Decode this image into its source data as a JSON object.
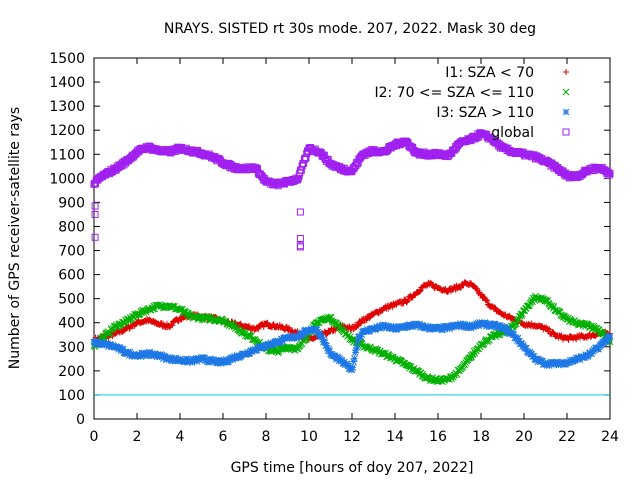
{
  "chart_data": {
    "type": "scatter",
    "title": "NRAYS. SISTED rt 30s mode. 207, 2022. Mask 30 deg",
    "xlabel": "GPS time [hours of doy 207, 2022]",
    "ylabel": "Number of GPS receiver-satellite rays",
    "xlim": [
      0,
      24
    ],
    "ylim": [
      0,
      1500
    ],
    "xticks": [
      0,
      2,
      4,
      6,
      8,
      10,
      12,
      14,
      16,
      18,
      20,
      22,
      24
    ],
    "yticks": [
      0,
      100,
      200,
      300,
      400,
      500,
      600,
      700,
      800,
      900,
      1000,
      1100,
      1200,
      1300,
      1400,
      1500
    ],
    "legend_position": "top-right",
    "reference_line": {
      "y": 100,
      "color": "#00cccc"
    },
    "series": [
      {
        "name": "I1: SZA < 70",
        "marker": "+",
        "color": "#e00000",
        "x": [
          0,
          0.5,
          1,
          1.5,
          2,
          2.5,
          3,
          3.5,
          4,
          4.5,
          5,
          5.5,
          6,
          6.5,
          7,
          7.5,
          8,
          8.5,
          9,
          9.5,
          10,
          10.5,
          11,
          11.5,
          12,
          12.5,
          13,
          13.5,
          14,
          14.5,
          15,
          15.3,
          15.6,
          16,
          16.5,
          17,
          17.3,
          17.6,
          18,
          18.5,
          19,
          19.5,
          20,
          20.5,
          21,
          21.5,
          22,
          22.5,
          23,
          23.5,
          24
        ],
        "values": [
          330,
          340,
          355,
          375,
          400,
          410,
          395,
          385,
          420,
          430,
          425,
          420,
          405,
          395,
          385,
          375,
          395,
          385,
          375,
          355,
          330,
          345,
          365,
          385,
          375,
          410,
          435,
          460,
          475,
          490,
          525,
          550,
          560,
          545,
          535,
          550,
          565,
          555,
          515,
          465,
          435,
          415,
          395,
          390,
          375,
          345,
          335,
          340,
          345,
          355,
          355
        ]
      },
      {
        "name": "I2: 70 <= SZA <= 110",
        "marker": "x",
        "color": "#00b000",
        "x": [
          0,
          0.5,
          1,
          1.5,
          2,
          2.5,
          3,
          3.5,
          4,
          4.5,
          5,
          5.5,
          6,
          6.5,
          7,
          7.5,
          8,
          8.5,
          9,
          9.5,
          10,
          10.5,
          11,
          11.5,
          12,
          12.5,
          13,
          13.5,
          14,
          14.5,
          15,
          15.5,
          16,
          16.5,
          17,
          17.5,
          18,
          18.5,
          19,
          19.5,
          20,
          20.5,
          21,
          21.5,
          22,
          22.5,
          23,
          23.5,
          24
        ],
        "values": [
          305,
          345,
          385,
          405,
          435,
          455,
          470,
          470,
          455,
          425,
          420,
          415,
          410,
          385,
          355,
          330,
          290,
          280,
          300,
          290,
          360,
          410,
          420,
          375,
          330,
          305,
          290,
          270,
          250,
          225,
          200,
          170,
          160,
          165,
          200,
          255,
          310,
          340,
          360,
          385,
          450,
          505,
          495,
          450,
          415,
          395,
          390,
          370,
          320
        ]
      },
      {
        "name": "I3: SZA > 110",
        "marker": "*",
        "color": "#1e78e6",
        "x": [
          0,
          0.5,
          1,
          1.5,
          2,
          2.5,
          3,
          3.5,
          4,
          4.5,
          5,
          5.5,
          6,
          6.5,
          7,
          7.5,
          8,
          8.5,
          9,
          9.5,
          10,
          10.3,
          10.6,
          11,
          11.5,
          12,
          12.3,
          12.6,
          13,
          13.5,
          14,
          14.5,
          15,
          15.5,
          16,
          16.5,
          17,
          17.5,
          18,
          18.5,
          19,
          19.5,
          20,
          20.5,
          21,
          21.5,
          22,
          22.5,
          23,
          23.5,
          24
        ],
        "values": [
          320,
          310,
          300,
          275,
          265,
          270,
          265,
          250,
          245,
          240,
          250,
          240,
          235,
          255,
          270,
          290,
          305,
          320,
          335,
          345,
          370,
          375,
          340,
          270,
          240,
          205,
          340,
          365,
          375,
          385,
          375,
          385,
          390,
          380,
          375,
          380,
          390,
          385,
          395,
          390,
          380,
          350,
          300,
          250,
          230,
          230,
          235,
          250,
          265,
          300,
          345
        ]
      },
      {
        "name": "global",
        "marker": "square",
        "color": "#a020f0",
        "x": [
          0,
          0.25,
          0.5,
          1,
          1.5,
          2,
          2.5,
          3,
          3.5,
          4,
          4.5,
          5,
          5.5,
          6,
          6.5,
          7,
          7.5,
          8,
          8.5,
          9,
          9.5,
          10,
          10.5,
          11,
          11.5,
          12,
          12.5,
          13,
          13.5,
          14,
          14.5,
          15,
          15.5,
          16,
          16.5,
          17,
          17.5,
          18,
          18.5,
          19,
          19.5,
          20,
          20.5,
          21,
          21.5,
          22,
          22.5,
          23,
          23.5,
          24
        ],
        "values": [
          975,
          1000,
          1015,
          1040,
          1070,
          1110,
          1130,
          1115,
          1110,
          1125,
          1115,
          1105,
          1090,
          1065,
          1045,
          1040,
          1045,
          985,
          975,
          985,
          1000,
          1125,
          1110,
          1060,
          1040,
          1030,
          1100,
          1115,
          1110,
          1140,
          1155,
          1105,
          1100,
          1100,
          1095,
          1145,
          1160,
          1185,
          1165,
          1125,
          1110,
          1100,
          1090,
          1070,
          1045,
          1010,
          1010,
          1035,
          1045,
          1020
        ]
      }
    ],
    "outliers": [
      {
        "series": "global",
        "x": 0.05,
        "y": 755
      },
      {
        "series": "global",
        "x": 0.05,
        "y": 850
      },
      {
        "series": "global",
        "x": 0.05,
        "y": 885
      },
      {
        "series": "global",
        "x": 9.6,
        "y": 860
      },
      {
        "series": "global",
        "x": 9.6,
        "y": 750
      },
      {
        "series": "global",
        "x": 9.6,
        "y": 715
      },
      {
        "series": "global",
        "x": 9.6,
        "y": 720
      }
    ]
  }
}
